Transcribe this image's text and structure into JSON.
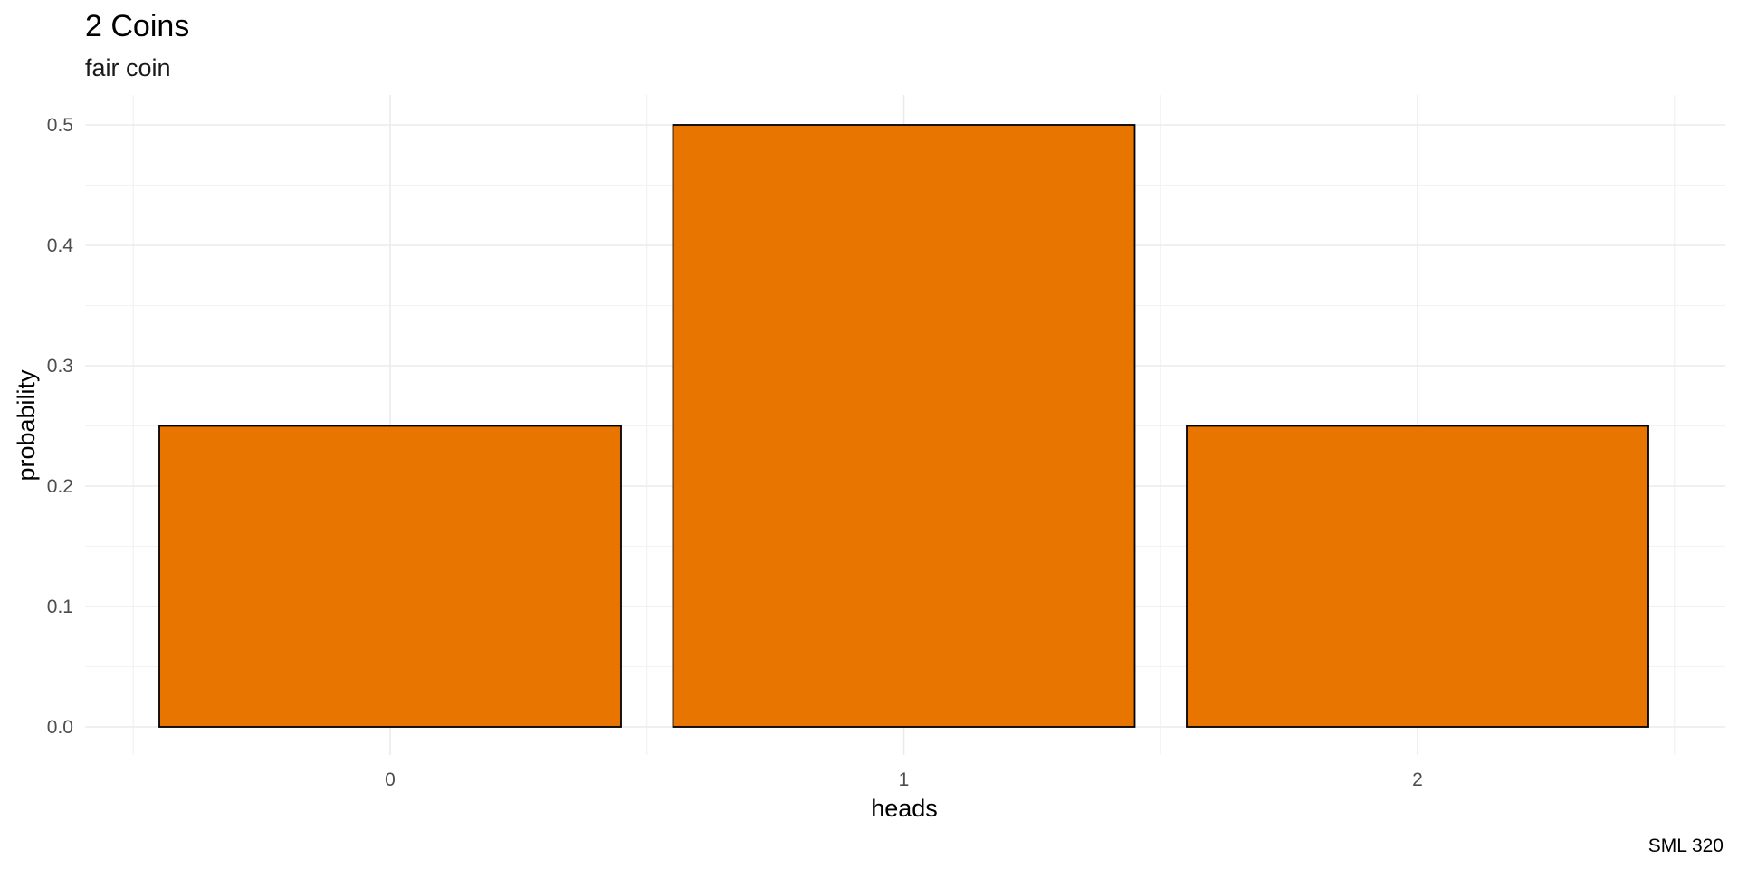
{
  "chart_data": {
    "type": "bar",
    "title": "2 Coins",
    "subtitle": "fair coin",
    "caption": "SML 320",
    "xlabel": "heads",
    "ylabel": "probability",
    "categories": [
      "0",
      "1",
      "2"
    ],
    "values": [
      0.25,
      0.5,
      0.25
    ],
    "ylim": [
      0,
      0.5
    ],
    "y_ticks": [
      "0.0",
      "0.1",
      "0.2",
      "0.3",
      "0.4",
      "0.5"
    ],
    "grid": true,
    "legend": "none",
    "colors": {
      "bar_fill": "#E87500",
      "bar_stroke": "#000000",
      "grid_major": "#EBEBEB",
      "grid_minor": "#F3F3F3",
      "background": "#FFFFFF"
    }
  }
}
